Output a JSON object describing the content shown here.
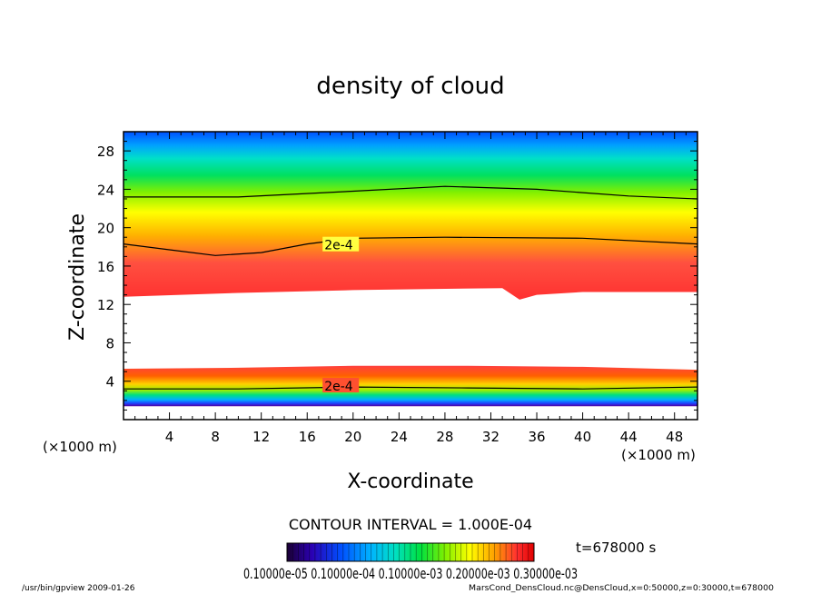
{
  "chart_data": {
    "type": "heatmap",
    "title": "density of cloud",
    "xlabel": "X-coordinate",
    "ylabel": "Z-coordinate",
    "x_unit": "(×1000 m)",
    "y_unit": "(×1000 m)",
    "xlim": [
      0,
      50
    ],
    "ylim": [
      0,
      30
    ],
    "x_ticks": [
      4,
      8,
      12,
      16,
      20,
      24,
      28,
      32,
      36,
      40,
      44,
      48
    ],
    "y_ticks": [
      4,
      8,
      12,
      16,
      20,
      24,
      28
    ],
    "contour_interval_text": "CONTOUR INTERVAL = 1.000E-04",
    "contour_labels": [
      {
        "text": "2e-4",
        "x": 17.5,
        "z": 18.2
      },
      {
        "text": "2e-4",
        "x": 17.5,
        "z": 3.5
      }
    ],
    "upper_cloud_layer": {
      "bottom": [
        [
          0,
          12.8
        ],
        [
          10,
          13.2
        ],
        [
          20,
          13.5
        ],
        [
          33,
          13.7
        ],
        [
          34.5,
          12.5
        ],
        [
          36,
          13.0
        ],
        [
          40,
          13.3
        ],
        [
          50,
          13.3
        ]
      ],
      "contour_2e-4": [
        [
          0,
          18.3
        ],
        [
          4,
          17.7
        ],
        [
          8,
          17.1
        ],
        [
          12,
          17.4
        ],
        [
          16,
          18.3
        ],
        [
          20,
          18.9
        ],
        [
          28,
          19.0
        ],
        [
          40,
          18.9
        ],
        [
          50,
          18.3
        ]
      ],
      "contour_1e-4": [
        [
          0,
          23.2
        ],
        [
          10,
          23.2
        ],
        [
          20,
          23.8
        ],
        [
          28,
          24.3
        ],
        [
          36,
          24.0
        ],
        [
          44,
          23.3
        ],
        [
          50,
          23.0
        ]
      ]
    },
    "lower_cloud_layer": {
      "top": [
        [
          0,
          5.3
        ],
        [
          10,
          5.4
        ],
        [
          20,
          5.6
        ],
        [
          30,
          5.6
        ],
        [
          40,
          5.5
        ],
        [
          50,
          5.2
        ]
      ],
      "bottom": [
        [
          0,
          1.4
        ],
        [
          50,
          1.4
        ]
      ],
      "contour_2e-4": [
        [
          0,
          3.2
        ],
        [
          10,
          3.2
        ],
        [
          20,
          3.4
        ],
        [
          30,
          3.3
        ],
        [
          40,
          3.2
        ],
        [
          50,
          3.4
        ]
      ]
    },
    "colorbar": {
      "tick_labels_text": "0.10000e-05 0.10000e-04 0.10000e-03 0.20000e-03 0.30000e-03",
      "colors": [
        "#1a0033",
        "#2b00b3",
        "#0050ff",
        "#00b4ff",
        "#00e0c0",
        "#00e040",
        "#80f000",
        "#ffff00",
        "#ffa000",
        "#ff3030",
        "#e00000"
      ]
    },
    "time_text": "t=678000 s",
    "footer_left": "/usr/bin/gpview   2009-01-26",
    "footer_right": "MarsCond_DensCloud.nc@DensCloud,x=0:50000,z=0:30000,t=678000",
    "colors": {
      "contour_line": "#000000",
      "frame": "#000000",
      "background": "#ffffff"
    }
  }
}
